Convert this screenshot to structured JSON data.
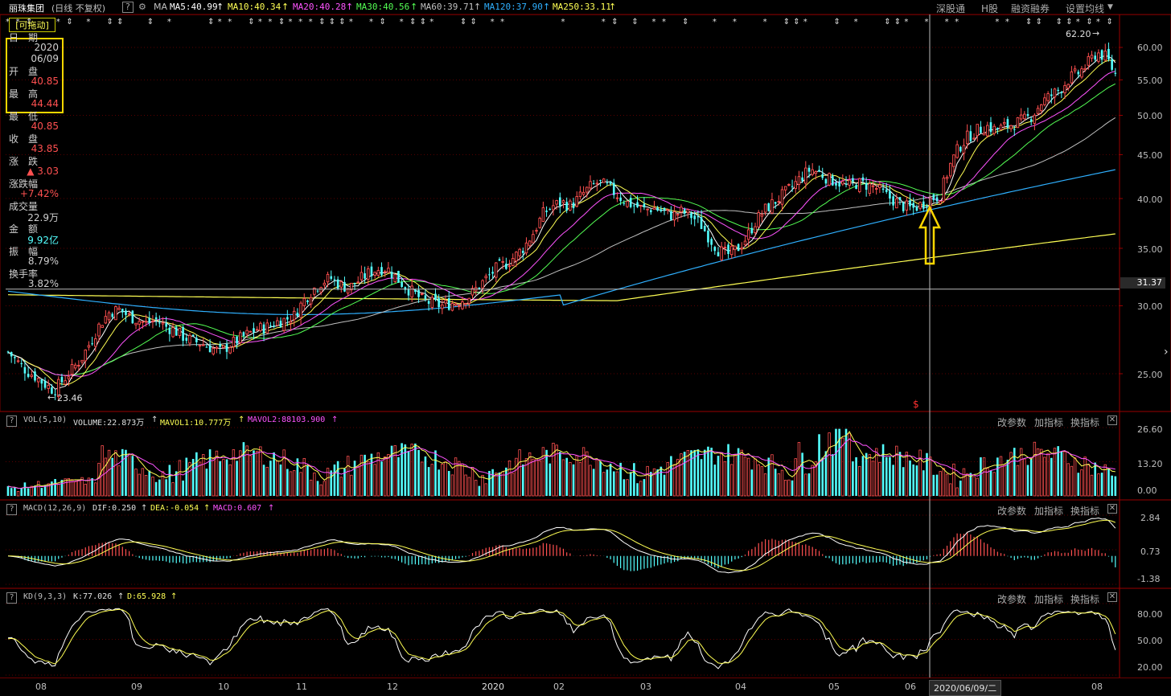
{
  "topbar": {
    "stock_name": "丽珠集团",
    "period": "(日线 不复权)",
    "help": "?",
    "ma_label": "MA",
    "ma5": "MA5:40.99",
    "ma10": "MA10:40.34",
    "ma20": "MA20:40.28",
    "ma30": "MA30:40.56",
    "ma60": "MA60:39.71",
    "ma120": "MA120:37.90",
    "ma250": "MA250:33.11",
    "btn_shenguto": "深股通",
    "btn_hshare": "H股",
    "btn_margin": "融资融券",
    "btn_settings": "设置均线"
  },
  "colors": {
    "up": "#ff5050",
    "down": "#54ffff",
    "ma5": "#ffffff",
    "ma10": "#ffff54",
    "ma20": "#ff54ff",
    "ma30": "#54ff54",
    "ma60": "#c0c0c0",
    "ma120": "#2fb0ff",
    "ma250": "#ffff54",
    "grid": "#5a0000"
  },
  "info": {
    "draggable": "[可拖动]",
    "date_label": "日　期",
    "date_year": "2020",
    "date_md": "06/09",
    "open_label": "开　盘",
    "open": "40.85",
    "high_label": "最　高",
    "high": "44.44",
    "low_label": "最　低",
    "low": "40.85",
    "close_label": "收　盘",
    "close": "43.85",
    "change_label": "涨　跌",
    "change": "▲ 3.03",
    "pct_label": "涨跌幅",
    "pct": "+7.42%",
    "vol_label": "成交量",
    "vol": "22.9万",
    "amount_label": "金　额",
    "amount": "9.92亿",
    "amp_label": "振　幅",
    "amp": "8.79%",
    "turnover_label": "换手率",
    "turnover": "3.82%"
  },
  "price_axis": {
    "ticks": [
      "60.00",
      "55.00",
      "50.00",
      "45.00",
      "40.00",
      "35.00",
      "30.00",
      "25.00"
    ],
    "current": "31.37",
    "high_mark": "62.20",
    "low_mark": "23.46"
  },
  "vol_panel": {
    "title": "VOL(5,10)",
    "volume": "VOLUME:22.873万",
    "mavol1": "MAVOL1:10.777万",
    "mavol2": "MAVOL2:88103.900",
    "ticks": [
      "26.60",
      "13.20",
      "0.00"
    ]
  },
  "macd_panel": {
    "title": "MACD(12,26,9)",
    "dif": "DIF:0.250",
    "dea": "DEA:-0.054",
    "macd": "MACD:0.607",
    "ticks": [
      "2.84",
      "0.73",
      "-1.38"
    ]
  },
  "kd_panel": {
    "title": "KD(9,3,3)",
    "k": "K:77.026",
    "d": "D:65.928",
    "ticks": [
      "80.00",
      "50.00",
      "20.00"
    ]
  },
  "panel_buttons": {
    "change_params": "改参数",
    "add_indicator": "加指标",
    "switch_indicator": "换指标",
    "close": "✕"
  },
  "bottom_axis": {
    "months": [
      "08",
      "09",
      "10",
      "11",
      "12",
      "2020",
      "02",
      "03",
      "04",
      "05",
      "06",
      "08"
    ],
    "cursor_date": "2020/06/09/二"
  },
  "chart_data": {
    "type": "candlestick",
    "title": "",
    "ylim": [
      23,
      63
    ],
    "y_ticks": [
      25,
      30,
      35,
      40,
      45,
      50,
      55,
      60
    ],
    "x_ticks": [
      "08",
      "09",
      "10",
      "11",
      "12",
      "2020",
      "02",
      "03",
      "04",
      "05",
      "06",
      "08"
    ],
    "high": 62.2,
    "low": 23.46,
    "selected_bar": {
      "date": "2020/06/09",
      "open": 40.85,
      "high": 44.44,
      "low": 40.85,
      "close": 43.85
    },
    "price_path": [
      26.5,
      25.8,
      25.2,
      24.8,
      24.3,
      23.9,
      24.6,
      25.3,
      26.1,
      27.3,
      28.6,
      29.5,
      29.7,
      29.2,
      28.9,
      28.6,
      28.9,
      28.4,
      28.1,
      27.6,
      27.3,
      27.1,
      26.8,
      26.5,
      27.0,
      27.4,
      27.8,
      28.2,
      28.3,
      28.7,
      28.9,
      29.2,
      30.4,
      31.3,
      32.0,
      32.3,
      31.7,
      31.5,
      32.1,
      32.7,
      33.1,
      33.2,
      32.4,
      31.6,
      31.0,
      30.4,
      30.2,
      30.0,
      30.2,
      30.4,
      30.8,
      31.6,
      32.4,
      33.2,
      33.6,
      34.3,
      35.2,
      36.6,
      38.4,
      39.2,
      39.6,
      39.2,
      40.2,
      41.2,
      41.8,
      41.2,
      40.4,
      39.6,
      39.2,
      38.8,
      39.0,
      38.6,
      38.2,
      38.6,
      38.2,
      37.4,
      36.0,
      34.8,
      34.4,
      34.9,
      36.0,
      37.6,
      38.8,
      39.6,
      40.4,
      41.3,
      42.4,
      43.3,
      42.8,
      42.1,
      41.8,
      41.3,
      41.7,
      41.5,
      41.2,
      40.4,
      39.8,
      39.2,
      38.9,
      39.4,
      40.0,
      40.3,
      43.5,
      45.8,
      47.2,
      48.0,
      48.6,
      48.1,
      48.5,
      48.9,
      49.3,
      50.0,
      51.8,
      52.7,
      53.6,
      55.2,
      56.0,
      57.4,
      59.2,
      58.4,
      55.8
    ],
    "volume_ylim": [
      0,
      26.6
    ],
    "macd_ylim": [
      -1.38,
      2.84
    ],
    "kd_ylim": [
      20,
      80
    ]
  }
}
